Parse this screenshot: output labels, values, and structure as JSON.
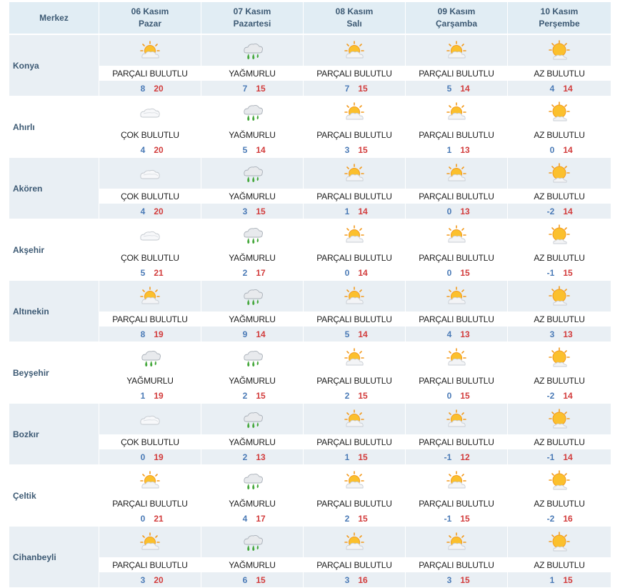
{
  "header": {
    "location_label": "Merkez",
    "days": [
      {
        "date": "06 Kasım",
        "weekday": "Pazar"
      },
      {
        "date": "07 Kasım",
        "weekday": "Pazartesi"
      },
      {
        "date": "08 Kasım",
        "weekday": "Salı"
      },
      {
        "date": "09 Kasım",
        "weekday": "Çarşamba"
      },
      {
        "date": "10 Kasım",
        "weekday": "Perşembe"
      }
    ]
  },
  "icons": {
    "partly": "partly-cloudy-icon",
    "rain": "rain-icon",
    "cloudy": "cloudy-icon",
    "few": "few-clouds-icon"
  },
  "colors": {
    "header_bg": "#e1edf4",
    "row_shade": "#e9eff4",
    "min_temp": "#4a7ab6",
    "max_temp": "#d23c3c",
    "label": "#3d5a74"
  },
  "locations": [
    {
      "name": "Konya",
      "days": [
        {
          "icon": "partly",
          "desc": "PARÇALI BULUTLU",
          "min": "8",
          "max": "20"
        },
        {
          "icon": "rain",
          "desc": "YAĞMURLU",
          "min": "7",
          "max": "15"
        },
        {
          "icon": "partly",
          "desc": "PARÇALI BULUTLU",
          "min": "7",
          "max": "15"
        },
        {
          "icon": "partly",
          "desc": "PARÇALI BULUTLU",
          "min": "5",
          "max": "14"
        },
        {
          "icon": "few",
          "desc": "AZ BULUTLU",
          "min": "4",
          "max": "14"
        }
      ]
    },
    {
      "name": "Ahırlı",
      "days": [
        {
          "icon": "cloudy",
          "desc": "ÇOK BULUTLU",
          "min": "4",
          "max": "20"
        },
        {
          "icon": "rain",
          "desc": "YAĞMURLU",
          "min": "5",
          "max": "14"
        },
        {
          "icon": "partly",
          "desc": "PARÇALI BULUTLU",
          "min": "3",
          "max": "15"
        },
        {
          "icon": "partly",
          "desc": "PARÇALI BULUTLU",
          "min": "1",
          "max": "13"
        },
        {
          "icon": "few",
          "desc": "AZ BULUTLU",
          "min": "0",
          "max": "14"
        }
      ]
    },
    {
      "name": "Akören",
      "days": [
        {
          "icon": "cloudy",
          "desc": "ÇOK BULUTLU",
          "min": "4",
          "max": "20"
        },
        {
          "icon": "rain",
          "desc": "YAĞMURLU",
          "min": "3",
          "max": "15"
        },
        {
          "icon": "partly",
          "desc": "PARÇALI BULUTLU",
          "min": "1",
          "max": "14"
        },
        {
          "icon": "partly",
          "desc": "PARÇALI BULUTLU",
          "min": "0",
          "max": "13"
        },
        {
          "icon": "few",
          "desc": "AZ BULUTLU",
          "min": "-2",
          "max": "14"
        }
      ]
    },
    {
      "name": "Akşehir",
      "days": [
        {
          "icon": "cloudy",
          "desc": "ÇOK BULUTLU",
          "min": "5",
          "max": "21"
        },
        {
          "icon": "rain",
          "desc": "YAĞMURLU",
          "min": "2",
          "max": "17"
        },
        {
          "icon": "partly",
          "desc": "PARÇALI BULUTLU",
          "min": "0",
          "max": "14"
        },
        {
          "icon": "partly",
          "desc": "PARÇALI BULUTLU",
          "min": "0",
          "max": "15"
        },
        {
          "icon": "few",
          "desc": "AZ BULUTLU",
          "min": "-1",
          "max": "15"
        }
      ]
    },
    {
      "name": "Altınekin",
      "days": [
        {
          "icon": "partly",
          "desc": "PARÇALI BULUTLU",
          "min": "8",
          "max": "19"
        },
        {
          "icon": "rain",
          "desc": "YAĞMURLU",
          "min": "9",
          "max": "14"
        },
        {
          "icon": "partly",
          "desc": "PARÇALI BULUTLU",
          "min": "5",
          "max": "14"
        },
        {
          "icon": "partly",
          "desc": "PARÇALI BULUTLU",
          "min": "4",
          "max": "13"
        },
        {
          "icon": "few",
          "desc": "AZ BULUTLU",
          "min": "3",
          "max": "13"
        }
      ]
    },
    {
      "name": "Beyşehir",
      "days": [
        {
          "icon": "rain",
          "desc": "YAĞMURLU",
          "min": "1",
          "max": "19"
        },
        {
          "icon": "rain",
          "desc": "YAĞMURLU",
          "min": "2",
          "max": "15"
        },
        {
          "icon": "partly",
          "desc": "PARÇALI BULUTLU",
          "min": "2",
          "max": "15"
        },
        {
          "icon": "partly",
          "desc": "PARÇALI BULUTLU",
          "min": "0",
          "max": "15"
        },
        {
          "icon": "few",
          "desc": "AZ BULUTLU",
          "min": "-2",
          "max": "14"
        }
      ]
    },
    {
      "name": "Bozkır",
      "days": [
        {
          "icon": "cloudy",
          "desc": "ÇOK BULUTLU",
          "min": "0",
          "max": "19"
        },
        {
          "icon": "rain",
          "desc": "YAĞMURLU",
          "min": "2",
          "max": "13"
        },
        {
          "icon": "partly",
          "desc": "PARÇALI BULUTLU",
          "min": "1",
          "max": "15"
        },
        {
          "icon": "partly",
          "desc": "PARÇALI BULUTLU",
          "min": "-1",
          "max": "12"
        },
        {
          "icon": "few",
          "desc": "AZ BULUTLU",
          "min": "-1",
          "max": "14"
        }
      ]
    },
    {
      "name": "Çeltik",
      "days": [
        {
          "icon": "partly",
          "desc": "PARÇALI BULUTLU",
          "min": "0",
          "max": "21"
        },
        {
          "icon": "rain",
          "desc": "YAĞMURLU",
          "min": "4",
          "max": "17"
        },
        {
          "icon": "partly",
          "desc": "PARÇALI BULUTLU",
          "min": "2",
          "max": "15"
        },
        {
          "icon": "partly",
          "desc": "PARÇALI BULUTLU",
          "min": "-1",
          "max": "15"
        },
        {
          "icon": "few",
          "desc": "AZ BULUTLU",
          "min": "-2",
          "max": "16"
        }
      ]
    },
    {
      "name": "Cihanbeyli",
      "days": [
        {
          "icon": "partly",
          "desc": "PARÇALI BULUTLU",
          "min": "3",
          "max": "20"
        },
        {
          "icon": "rain",
          "desc": "YAĞMURLU",
          "min": "6",
          "max": "15"
        },
        {
          "icon": "partly",
          "desc": "PARÇALI BULUTLU",
          "min": "3",
          "max": "16"
        },
        {
          "icon": "partly",
          "desc": "PARÇALI BULUTLU",
          "min": "3",
          "max": "15"
        },
        {
          "icon": "few",
          "desc": "AZ BULUTLU",
          "min": "1",
          "max": "15"
        }
      ]
    }
  ]
}
